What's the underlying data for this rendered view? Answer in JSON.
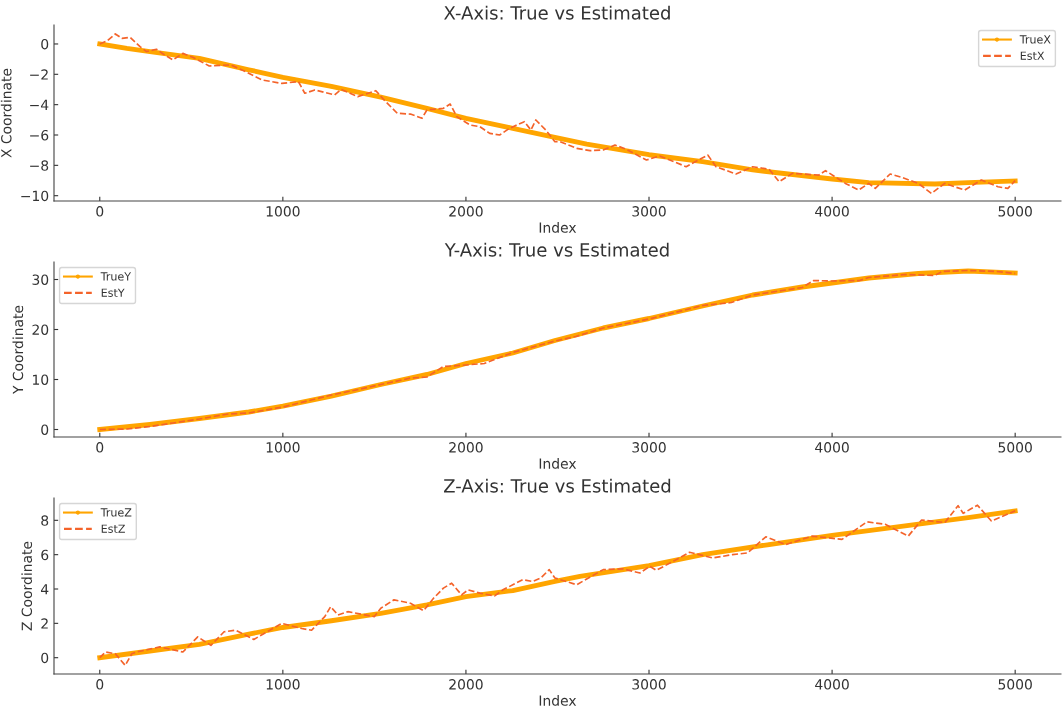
{
  "chart_data": [
    {
      "type": "line",
      "title": "X-Axis: True vs Estimated",
      "xlabel": "Index",
      "ylabel": "X Coordinate",
      "xlim": [
        -250,
        5250
      ],
      "xticks": [
        0,
        1000,
        2000,
        3000,
        4000,
        5000
      ],
      "ylim": [
        -10.35,
        1.25
      ],
      "yticks": [
        {
          "value": -10,
          "label": "−10"
        },
        {
          "value": -8,
          "label": "−8"
        },
        {
          "value": -6,
          "label": "−6"
        },
        {
          "value": -4,
          "label": "−4"
        },
        {
          "value": -2,
          "label": "−2"
        },
        0
      ],
      "grid": false,
      "legend": "top right",
      "series": [
        {
          "name": "TrueX",
          "color": "#ffa500",
          "marker": "circle",
          "line_style": "solid",
          "x": [
            0,
            148,
            274,
            544,
            814,
            1000,
            1265,
            1535,
            1787,
            2000,
            2256,
            2486,
            2660,
            3000,
            3293,
            3566,
            4000,
            4200,
            4562,
            4743,
            5000
          ],
          "values": [
            0,
            -0.29,
            -0.5,
            -0.95,
            -1.7,
            -2.2,
            -2.8,
            -3.5,
            -4.24,
            -4.9,
            -5.56,
            -6.15,
            -6.6,
            -7.3,
            -7.76,
            -8.3,
            -8.9,
            -9.14,
            -9.23,
            -9.14,
            -9.03
          ]
        },
        {
          "name": "EstX",
          "color": "#f4632a",
          "marker": "none",
          "line_style": "dashed",
          "x": [
            0,
            40,
            85,
            121,
            166,
            220,
            256,
            310,
            346,
            400,
            454,
            508,
            598,
            715,
            796,
            886,
            994,
            1085,
            1120,
            1175,
            1283,
            1319,
            1409,
            1508,
            1553,
            1625,
            1697,
            1760,
            1787,
            1877,
            1914,
            1950,
            2022,
            2076,
            2130,
            2184,
            2238,
            2319,
            2355,
            2382,
            2436,
            2486,
            2515,
            2605,
            2678,
            2750,
            2814,
            2877,
            2986,
            3058,
            3203,
            3321,
            3366,
            3475,
            3566,
            3656,
            3711,
            3783,
            3928,
            3964,
            4073,
            4145,
            4200,
            4236,
            4317,
            4380,
            4471,
            4543,
            4615,
            4724,
            4815,
            4906,
            4960,
            5000
          ],
          "values": [
            0,
            0.2,
            0.66,
            0.37,
            0.44,
            -0.18,
            -0.5,
            -0.35,
            -0.66,
            -1.05,
            -0.62,
            -0.88,
            -1.45,
            -1.38,
            -1.82,
            -2.37,
            -2.6,
            -2.48,
            -3.25,
            -3.03,
            -3.36,
            -2.99,
            -3.47,
            -3.08,
            -3.69,
            -4.57,
            -4.62,
            -4.9,
            -4.35,
            -4.24,
            -3.96,
            -4.79,
            -5.34,
            -5.45,
            -5.89,
            -6.0,
            -5.56,
            -5.12,
            -5.67,
            -5.01,
            -5.67,
            -6.44,
            -6.44,
            -6.88,
            -7.03,
            -6.99,
            -6.66,
            -6.95,
            -7.65,
            -7.38,
            -8.09,
            -7.32,
            -8.09,
            -8.57,
            -8.09,
            -8.26,
            -9.08,
            -8.53,
            -8.64,
            -8.35,
            -9.19,
            -9.63,
            -9.19,
            -9.52,
            -8.57,
            -8.79,
            -9.19,
            -9.85,
            -9.19,
            -9.63,
            -8.97,
            -9.41,
            -9.52,
            -9.01
          ]
        }
      ]
    },
    {
      "type": "line",
      "title": "Y-Axis: True vs Estimated",
      "xlabel": "Index",
      "ylabel": "Y Coordinate",
      "xlim": [
        -250,
        5250
      ],
      "xticks": [
        0,
        1000,
        2000,
        3000,
        4000,
        5000
      ],
      "ylim": [
        -1.5,
        33.5
      ],
      "yticks": [
        0,
        10,
        20,
        30
      ],
      "grid": false,
      "legend": "top left",
      "series": [
        {
          "name": "TrueY",
          "color": "#ffa500",
          "marker": "circle",
          "line_style": "solid",
          "x": [
            0,
            274,
            544,
            814,
            1000,
            1265,
            1535,
            1787,
            2000,
            2256,
            2486,
            2750,
            3000,
            3293,
            3566,
            3837,
            4000,
            4200,
            4471,
            4743,
            5000
          ],
          "values": [
            0,
            1.0,
            2.2,
            3.5,
            4.67,
            6.67,
            9.0,
            11.0,
            13.2,
            15.3,
            17.8,
            20.3,
            22.2,
            24.7,
            26.9,
            28.5,
            29.3,
            30.3,
            31.2,
            31.7,
            31.3
          ]
        },
        {
          "name": "EstY",
          "color": "#f4632a",
          "marker": "none",
          "line_style": "dashed",
          "x": [
            0,
            150,
            274,
            400,
            544,
            700,
            814,
            1000,
            1265,
            1400,
            1535,
            1700,
            1787,
            1877,
            2000,
            2100,
            2256,
            2486,
            2600,
            2750,
            3000,
            3293,
            3450,
            3566,
            3837,
            3900,
            4000,
            4150,
            4200,
            4400,
            4560,
            4600,
            4743,
            4900,
            5000
          ],
          "values": [
            0,
            0.1,
            0.6,
            1.3,
            2.1,
            3.1,
            3.3,
            4.5,
            6.9,
            7.9,
            9.0,
            10.3,
            10.5,
            12.6,
            12.9,
            13.2,
            15.4,
            17.7,
            18.6,
            20.3,
            22.1,
            24.8,
            25.4,
            26.9,
            28.4,
            29.8,
            29.7,
            29.8,
            30.4,
            31.0,
            30.8,
            31.6,
            31.8,
            31.6,
            31.2
          ]
        }
      ]
    },
    {
      "type": "line",
      "title": "Z-Axis: True vs Estimated",
      "xlabel": "Index",
      "ylabel": "Z Coordinate",
      "xlim": [
        -250,
        5250
      ],
      "xticks": [
        0,
        1000,
        2000,
        3000,
        4000,
        5000
      ],
      "ylim": [
        -0.95,
        9.3
      ],
      "yticks": [
        0,
        2,
        4,
        6,
        8
      ],
      "grid": false,
      "legend": "top left",
      "series": [
        {
          "name": "TrueZ",
          "color": "#ffa500",
          "marker": "circle",
          "line_style": "solid",
          "x": [
            0,
            274,
            544,
            814,
            1000,
            1265,
            1535,
            1787,
            2000,
            2256,
            2486,
            2623,
            3000,
            3293,
            3656,
            4000,
            4326,
            4743,
            5000
          ],
          "values": [
            0,
            0.39,
            0.78,
            1.37,
            1.76,
            2.15,
            2.58,
            3.07,
            3.56,
            3.91,
            4.45,
            4.74,
            5.36,
            6.0,
            6.59,
            7.12,
            7.57,
            8.16,
            8.55
          ]
        },
        {
          "name": "EstZ",
          "color": "#f4632a",
          "marker": "none",
          "line_style": "dashed",
          "x": [
            0,
            31,
            85,
            139,
            175,
            202,
            328,
            454,
            535,
            607,
            679,
            742,
            841,
            994,
            1103,
            1157,
            1229,
            1261,
            1301,
            1355,
            1499,
            1535,
            1607,
            1697,
            1769,
            1823,
            1877,
            1922,
            1976,
            2012,
            2076,
            2157,
            2202,
            2310,
            2364,
            2409,
            2455,
            2486,
            2605,
            2750,
            2859,
            2950,
            3004,
            3040,
            3167,
            3221,
            3348,
            3456,
            3538,
            3638,
            3747,
            3891,
            4054,
            4190,
            4290,
            4416,
            4489,
            4616,
            4688,
            4716,
            4794,
            4870,
            5000
          ],
          "values": [
            0,
            0.33,
            0.23,
            -0.45,
            0.23,
            0.33,
            0.63,
            0.33,
            1.21,
            0.72,
            1.51,
            1.6,
            1.06,
            2.0,
            1.7,
            1.6,
            2.39,
            2.97,
            2.49,
            2.68,
            2.39,
            2.88,
            3.37,
            3.17,
            2.74,
            3.46,
            4.05,
            4.34,
            3.66,
            3.95,
            3.76,
            3.6,
            3.95,
            4.54,
            4.44,
            4.64,
            5.13,
            4.64,
            4.25,
            5.13,
            5.17,
            4.93,
            5.32,
            5.09,
            5.81,
            6.14,
            5.81,
            6.0,
            6.1,
            7.04,
            6.59,
            7.08,
            6.89,
            7.91,
            7.77,
            7.08,
            8.02,
            7.87,
            8.85,
            8.41,
            8.88,
            7.96,
            8.55
          ]
        }
      ]
    }
  ]
}
